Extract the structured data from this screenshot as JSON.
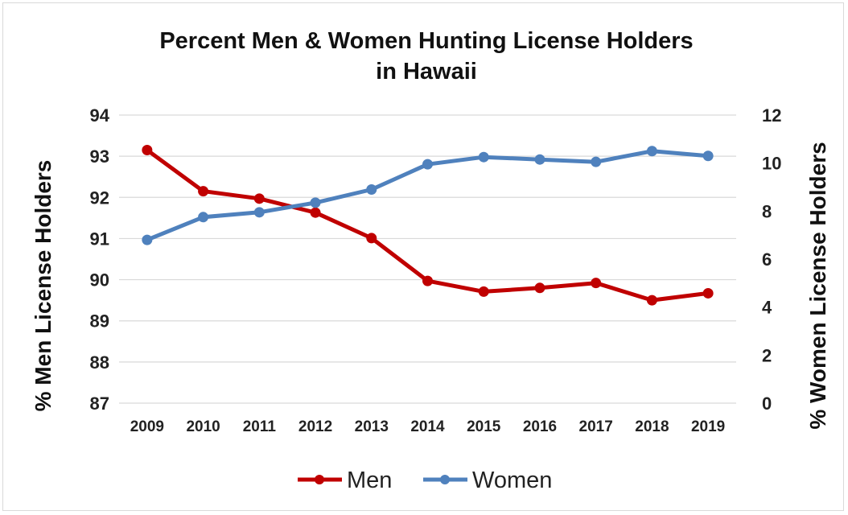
{
  "chart_data": {
    "type": "line",
    "title_lines": [
      "Percent Men & Women Hunting License Holders",
      "in Hawaii"
    ],
    "x": [
      "2009",
      "2010",
      "2011",
      "2012",
      "2013",
      "2014",
      "2015",
      "2016",
      "2017",
      "2018",
      "2019"
    ],
    "y_left": {
      "label": "% Men License Holders",
      "range": [
        87,
        94
      ],
      "ticks": [
        "87",
        "88",
        "89",
        "90",
        "91",
        "92",
        "93",
        "94"
      ]
    },
    "y_right": {
      "label": "% Women License Holders",
      "range": [
        0,
        12
      ],
      "ticks": [
        "0",
        "2",
        "4",
        "6",
        "8",
        "10",
        "12"
      ]
    },
    "grid": true,
    "legend_position": "bottom",
    "series": [
      {
        "name": "Men",
        "axis": "left",
        "color": "#c00000",
        "values": [
          93.15,
          92.15,
          91.97,
          91.63,
          91.01,
          89.97,
          89.71,
          89.8,
          89.92,
          89.5,
          89.67
        ]
      },
      {
        "name": "Women",
        "axis": "right",
        "color": "#4f81bd",
        "values": [
          6.8,
          7.75,
          7.95,
          8.35,
          8.9,
          9.95,
          10.25,
          10.15,
          10.05,
          10.5,
          10.3
        ]
      }
    ]
  }
}
